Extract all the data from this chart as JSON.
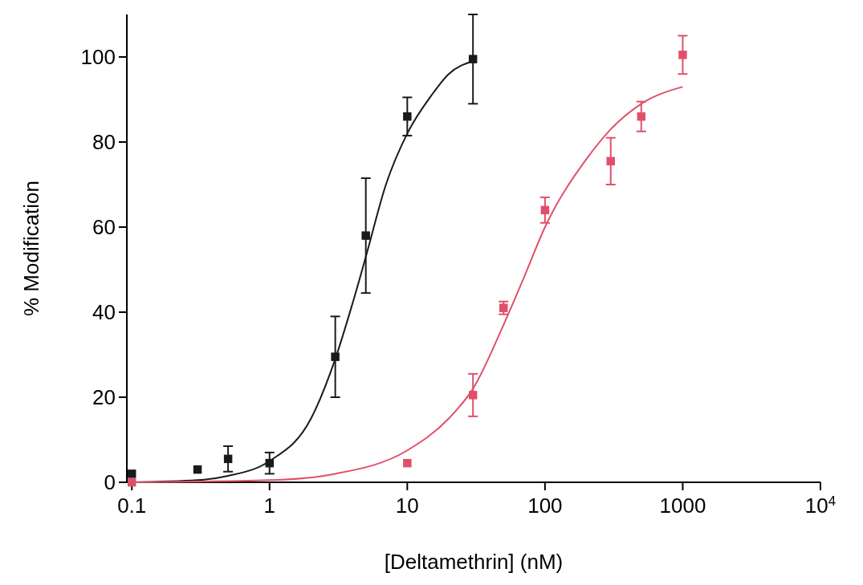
{
  "chart_data": {
    "type": "scatter",
    "xlabel": "[Deltamethrin] (nM)",
    "ylabel": "% Modification",
    "log": "x",
    "grid": false,
    "marker": "square",
    "xlim": [
      0.092,
      10000
    ],
    "ylim": [
      0,
      110
    ],
    "xticks": [
      0.1,
      1,
      10,
      100,
      1000,
      {
        "value": 10000,
        "label": "10$^{4}$"
      }
    ],
    "yticks": [
      0,
      20,
      40,
      60,
      80,
      100
    ],
    "series": [
      {
        "color": "#1a1a1a",
        "x": [
          0.1,
          0.3,
          0.5,
          1,
          3,
          5,
          10,
          30
        ],
        "values": [
          2,
          3,
          5.5,
          4.5,
          29.5,
          58,
          86,
          99.5
        ],
        "errors": [
          null,
          null,
          3,
          2.5,
          9.5,
          13.5,
          4.5,
          10.5
        ]
      },
      {
        "color": "#e0506a",
        "x": [
          0.1,
          10,
          30,
          50,
          100,
          300,
          500,
          1000
        ],
        "values": [
          0,
          4.5,
          20.5,
          41,
          64,
          75.5,
          86,
          100.5
        ],
        "errors": [
          null,
          null,
          5,
          1.5,
          3,
          5.5,
          3.5,
          4.5
        ]
      },
      {
        "type": "line",
        "marker": "none",
        "color": "#1a1a1a",
        "x": [
          0.1,
          0.3,
          0.5,
          1,
          2,
          3,
          4,
          5,
          7,
          10,
          15,
          20,
          30
        ],
        "values": [
          0,
          0.5,
          1.5,
          5,
          15,
          29,
          42,
          53,
          70,
          82,
          91,
          96,
          99
        ]
      },
      {
        "type": "line",
        "marker": "none",
        "color": "#e0506a",
        "x": [
          0.1,
          1,
          3,
          10,
          20,
          30,
          50,
          70,
          100,
          200,
          300,
          500,
          1000
        ],
        "values": [
          0,
          0.5,
          2,
          7.5,
          15,
          22,
          37,
          48,
          60,
          76,
          83,
          89,
          93
        ]
      }
    ]
  }
}
